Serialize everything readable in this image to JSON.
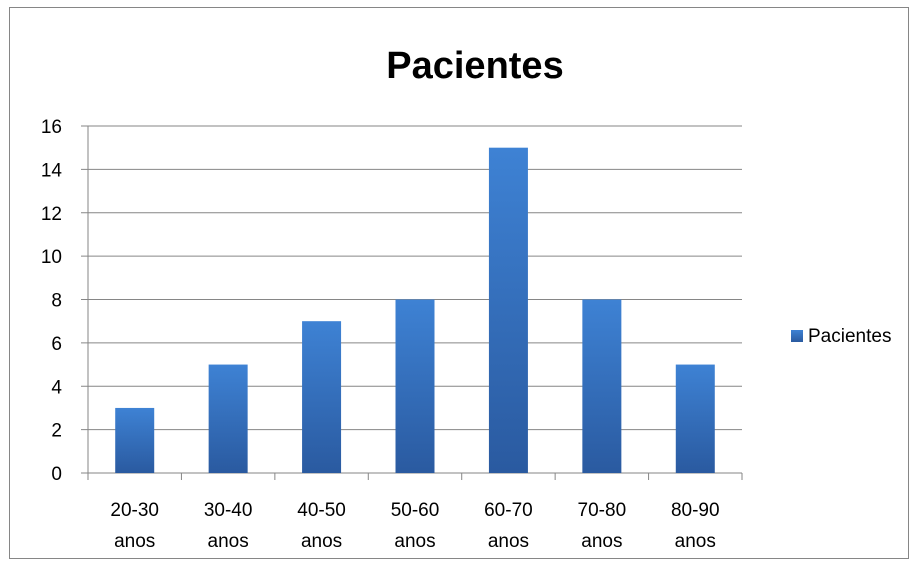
{
  "chart_data": {
    "type": "bar",
    "title": "Pacientes",
    "xlabel": "",
    "ylabel": "",
    "categories": [
      [
        "20-30",
        "anos"
      ],
      [
        "30-40",
        "anos"
      ],
      [
        "40-50",
        "anos"
      ],
      [
        "50-60",
        "anos"
      ],
      [
        "60-70",
        "anos"
      ],
      [
        "70-80",
        "anos"
      ],
      [
        "80-90",
        "anos"
      ]
    ],
    "series": [
      {
        "name": "Pacientes",
        "values": [
          3,
          5,
          7,
          8,
          15,
          8,
          5
        ]
      }
    ],
    "ylim": [
      0,
      16
    ],
    "yticks": [
      0,
      2,
      4,
      6,
      8,
      10,
      12,
      14,
      16
    ],
    "grid": true,
    "legend_position": "right",
    "colors": {
      "bar_top": "#3e82d4",
      "bar_bottom": "#2a5aa0",
      "grid": "#868686",
      "axis": "#868686"
    }
  }
}
